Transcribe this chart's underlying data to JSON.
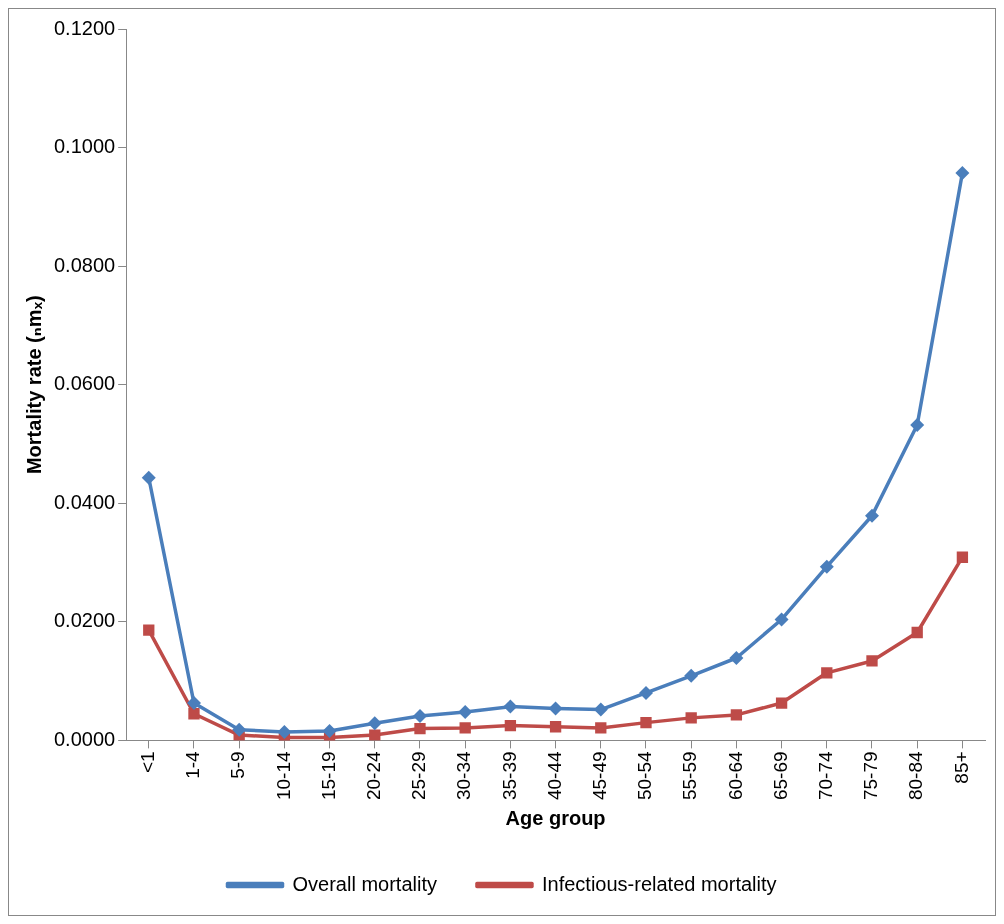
{
  "chart_data": {
    "type": "line",
    "xlabel": "Age group",
    "ylabel": "Mortality rate (ₙmₓ)",
    "categories": [
      "<1",
      "1-4",
      "5-9",
      "10-14",
      "15-19",
      "20-24",
      "25-29",
      "30-34",
      "35-39",
      "40-44",
      "45-49",
      "50-54",
      "55-59",
      "60-64",
      "65-69",
      "70-74",
      "75-79",
      "80-84",
      "85+"
    ],
    "series": [
      {
        "name": "Overall mortality",
        "color": "#4a7ebb",
        "marker": "diamond",
        "values": [
          0.0443,
          0.0063,
          0.0018,
          0.0014,
          0.0016,
          0.0029,
          0.0041,
          0.0048,
          0.0057,
          0.0054,
          0.0052,
          0.008,
          0.0109,
          0.0139,
          0.0204,
          0.0293,
          0.0379,
          0.0532,
          0.0957
        ]
      },
      {
        "name": "Infectious-related mortality",
        "color": "#be4b48",
        "marker": "square",
        "values": [
          0.0186,
          0.0045,
          0.0009,
          0.0005,
          0.0005,
          0.0009,
          0.002,
          0.0021,
          0.0025,
          0.0023,
          0.0021,
          0.003,
          0.0038,
          0.0043,
          0.0063,
          0.0114,
          0.0134,
          0.0182,
          0.0309
        ]
      }
    ],
    "ylim": [
      0,
      0.12
    ],
    "yticks": [
      {
        "value": 0,
        "label": "0.0000"
      },
      {
        "value": 0.02,
        "label": "0.0200"
      },
      {
        "value": 0.04,
        "label": "0.0400"
      },
      {
        "value": 0.06,
        "label": "0.0600"
      },
      {
        "value": 0.08,
        "label": "0.0800"
      },
      {
        "value": 0.1,
        "label": "0.1000"
      },
      {
        "value": 0.12,
        "label": "0.1200"
      }
    ],
    "grid": false,
    "legend": "bottom",
    "line_style": "solid"
  }
}
